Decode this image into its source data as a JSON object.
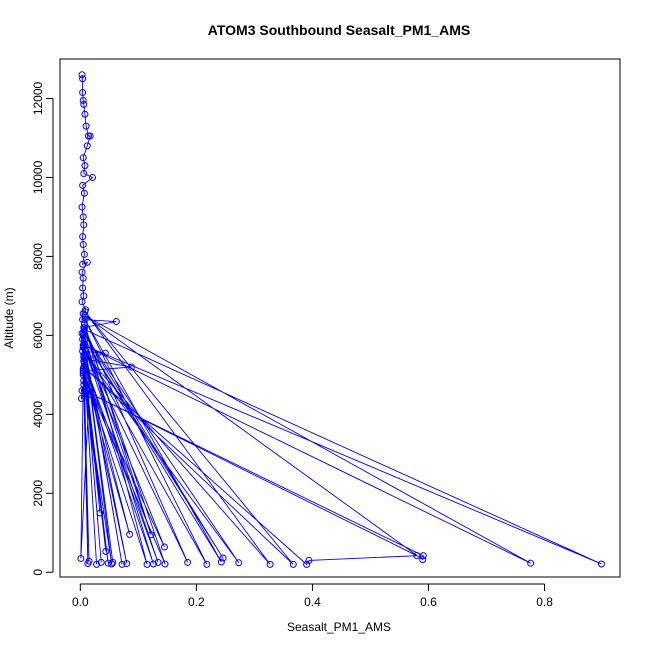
{
  "chart_data": {
    "type": "line",
    "title": "ATOM3 Southbound Seasalt_PM1_AMS",
    "xlabel": "Seasalt_PM1_AMS",
    "ylabel": "Altitude (m)",
    "xlim": [
      -0.035,
      0.93
    ],
    "ylim": [
      -120,
      13000
    ],
    "xticks": [
      0.0,
      0.2,
      0.4,
      0.6,
      0.8
    ],
    "xtick_labels": [
      "0.0",
      "0.2",
      "0.4",
      "0.6",
      "0.8"
    ],
    "yticks": [
      0,
      2000,
      4000,
      6000,
      8000,
      10000,
      12000
    ],
    "ytick_labels": [
      "0",
      "2000",
      "4000",
      "6000",
      "8000",
      "10000",
      "12000"
    ],
    "grid": false,
    "colors": {
      "series": "#0000ff",
      "axes": "#000000",
      "background": "#ffffff"
    },
    "series": [
      {
        "points": [
          [
            0.003,
            12600
          ],
          [
            0.004,
            12500
          ],
          [
            0.004,
            12150
          ],
          [
            0.005,
            11950
          ],
          [
            0.006,
            11850
          ],
          [
            0.008,
            11600
          ],
          [
            0.01,
            11300
          ],
          [
            0.014,
            11050
          ],
          [
            0.017,
            11050
          ],
          [
            0.012,
            10800
          ],
          [
            0.005,
            10500
          ],
          [
            0.008,
            10300
          ],
          [
            0.006,
            10100
          ],
          [
            0.021,
            10000
          ],
          [
            0.004,
            9800
          ],
          [
            0.007,
            9600
          ],
          [
            0.003,
            9250
          ],
          [
            0.005,
            9000
          ],
          [
            0.006,
            8800
          ],
          [
            0.004,
            8500
          ],
          [
            0.005,
            8300
          ],
          [
            0.007,
            8050
          ],
          [
            0.004,
            7800
          ],
          [
            0.012,
            7850
          ],
          [
            0.003,
            7600
          ],
          [
            0.005,
            7450
          ],
          [
            0.004,
            7200
          ],
          [
            0.006,
            7000
          ],
          [
            0.003,
            6850
          ],
          [
            0.009,
            6650
          ],
          [
            0.005,
            6550
          ],
          [
            0.004,
            6400
          ],
          [
            0.062,
            6350
          ],
          [
            0.006,
            6200
          ],
          [
            0.003,
            6050
          ],
          [
            0.008,
            5900
          ],
          [
            0.005,
            5750
          ],
          [
            0.004,
            5600
          ],
          [
            0.043,
            5550
          ],
          [
            0.007,
            5400
          ],
          [
            0.088,
            5200
          ],
          [
            0.005,
            5100
          ],
          [
            0.012,
            4900
          ],
          [
            0.006,
            4750
          ],
          [
            0.003,
            4600
          ],
          [
            0.002,
            4400
          ],
          [
            0.01,
            4550
          ],
          [
            0.015,
            4500
          ],
          [
            0.001,
            350
          ],
          [
            0.006,
            6100
          ],
          [
            0.013,
            220
          ],
          [
            0.004,
            5900
          ],
          [
            0.015,
            280
          ],
          [
            0.005,
            5700
          ],
          [
            0.028,
            200
          ],
          [
            0.006,
            5500
          ],
          [
            0.034,
            1500
          ],
          [
            0.007,
            5300
          ],
          [
            0.036,
            250
          ],
          [
            0.008,
            5200
          ],
          [
            0.044,
            530
          ],
          [
            0.009,
            5000
          ],
          [
            0.048,
            230
          ],
          [
            0.006,
            4850
          ],
          [
            0.054,
            210
          ],
          [
            0.005,
            6000
          ],
          [
            0.056,
            250
          ],
          [
            0.007,
            5800
          ],
          [
            0.072,
            200
          ],
          [
            0.008,
            5650
          ],
          [
            0.08,
            220
          ],
          [
            0.006,
            5450
          ],
          [
            0.085,
            960
          ],
          [
            0.005,
            5150
          ],
          [
            0.115,
            200
          ],
          [
            0.007,
            6300
          ],
          [
            0.122,
            950
          ],
          [
            0.008,
            5900
          ],
          [
            0.126,
            210
          ],
          [
            0.006,
            5350
          ],
          [
            0.134,
            250
          ],
          [
            0.009,
            5600
          ],
          [
            0.145,
            640
          ],
          [
            0.005,
            5050
          ],
          [
            0.146,
            210
          ],
          [
            0.007,
            6200
          ],
          [
            0.185,
            250
          ],
          [
            0.006,
            5700
          ],
          [
            0.218,
            200
          ],
          [
            0.008,
            6400
          ],
          [
            0.243,
            260
          ],
          [
            0.007,
            5900
          ],
          [
            0.246,
            360
          ],
          [
            0.006,
            6050
          ],
          [
            0.273,
            240
          ],
          [
            0.009,
            5500
          ],
          [
            0.327,
            200
          ],
          [
            0.008,
            6600
          ],
          [
            0.367,
            200
          ],
          [
            0.006,
            5200
          ],
          [
            0.39,
            200
          ],
          [
            0.394,
            300
          ],
          [
            0.58,
            420
          ],
          [
            0.007,
            4600
          ],
          [
            0.591,
            420
          ],
          [
            0.59,
            320
          ],
          [
            0.008,
            6500
          ],
          [
            0.776,
            230
          ],
          [
            0.006,
            5750
          ],
          [
            0.898,
            210
          ],
          [
            0.007,
            6150
          ],
          [
            0.005,
            5000
          ]
        ]
      }
    ]
  }
}
